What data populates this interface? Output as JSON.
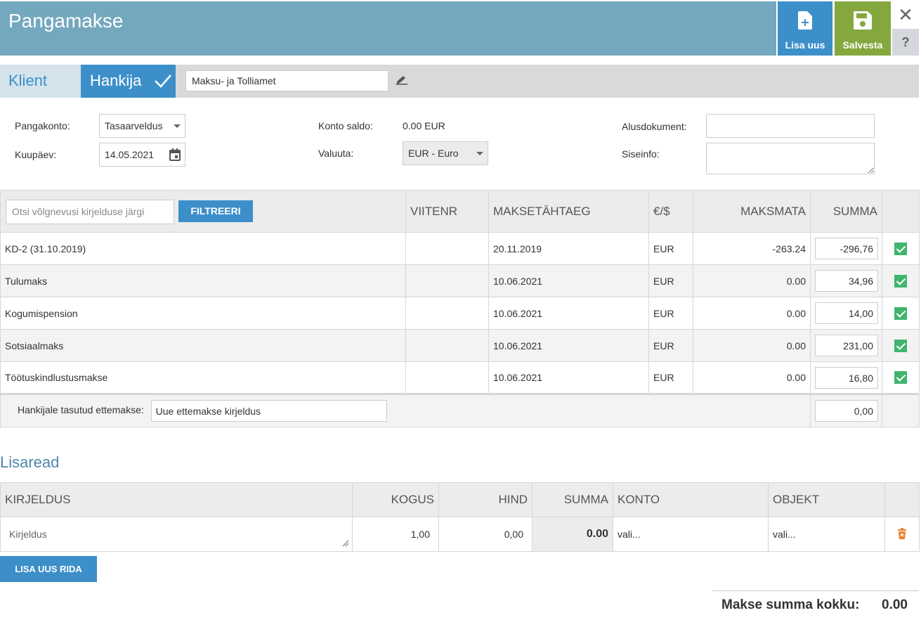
{
  "window": {
    "title": "Pangamakse"
  },
  "toolbar": {
    "new_label": "Lisa uus",
    "save_label": "Salvesta",
    "close_glyph": "✕",
    "help_glyph": "?"
  },
  "party": {
    "tab_client": "Klient",
    "tab_supplier": "Hankija",
    "selected": "Hankija",
    "name_value": "Maksu- ja Tolliamet"
  },
  "form": {
    "bank_account_label": "Pangakonto:",
    "bank_account_value": "Tasaarveldus",
    "date_label": "Kuupäev:",
    "date_value": "14.05.2021",
    "balance_label": "Konto saldo:",
    "balance_value": "0.00 EUR",
    "currency_label": "Valuuta:",
    "currency_value": "EUR - Euro",
    "base_doc_label": "Alusdokument:",
    "base_doc_value": "",
    "internal_label": "Siseinfo:",
    "internal_value": ""
  },
  "debts": {
    "search_placeholder": "Otsi võlgnevusi kirjelduse järgi",
    "filter_label": "FILTREERI",
    "columns": [
      "VIITENR",
      "MAKSETÄHTAEG",
      "€/$",
      "MAKSMATA",
      "SUMMA"
    ],
    "rows": [
      {
        "desc": "KD-2 (31.10.2019)",
        "ref": "",
        "due": "20.11.2019",
        "cur": "EUR",
        "unpaid": "-263.24",
        "sum": "-296,76",
        "checked": true
      },
      {
        "desc": "Tulumaks",
        "ref": "",
        "due": "10.06.2021",
        "cur": "EUR",
        "unpaid": "0.00",
        "sum": "34,96",
        "checked": true
      },
      {
        "desc": "Kogumispension",
        "ref": "",
        "due": "10.06.2021",
        "cur": "EUR",
        "unpaid": "0.00",
        "sum": "14,00",
        "checked": true
      },
      {
        "desc": "Sotsiaalmaks",
        "ref": "",
        "due": "10.06.2021",
        "cur": "EUR",
        "unpaid": "0.00",
        "sum": "231,00",
        "checked": true
      },
      {
        "desc": "Töötuskindlustusmakse",
        "ref": "",
        "due": "10.06.2021",
        "cur": "EUR",
        "unpaid": "0.00",
        "sum": "16,80",
        "checked": true
      }
    ],
    "advance_label": "Hankijale tasutud ettemakse:",
    "advance_placeholder": "Uue ettemakse kirjeldus",
    "advance_sum": "0,00"
  },
  "extra": {
    "title": "Lisaread",
    "columns": [
      "KIRJELDUS",
      "KOGUS",
      "HIND",
      "SUMMA",
      "KONTO",
      "OBJEKT"
    ],
    "row": {
      "desc_placeholder": "Kirjeldus",
      "qty": "1,00",
      "price": "0,00",
      "sum": "0.00",
      "account": "vali...",
      "object": "vali..."
    },
    "add_row_label": "LISA UUS RIDA"
  },
  "total": {
    "label": "Makse summa kokku:",
    "value": "0.00"
  },
  "colors": {
    "header": "#74a8be",
    "accent": "#3d8fc9",
    "save": "#84a83d",
    "check": "#3fb56e",
    "delete": "#e8822b"
  }
}
